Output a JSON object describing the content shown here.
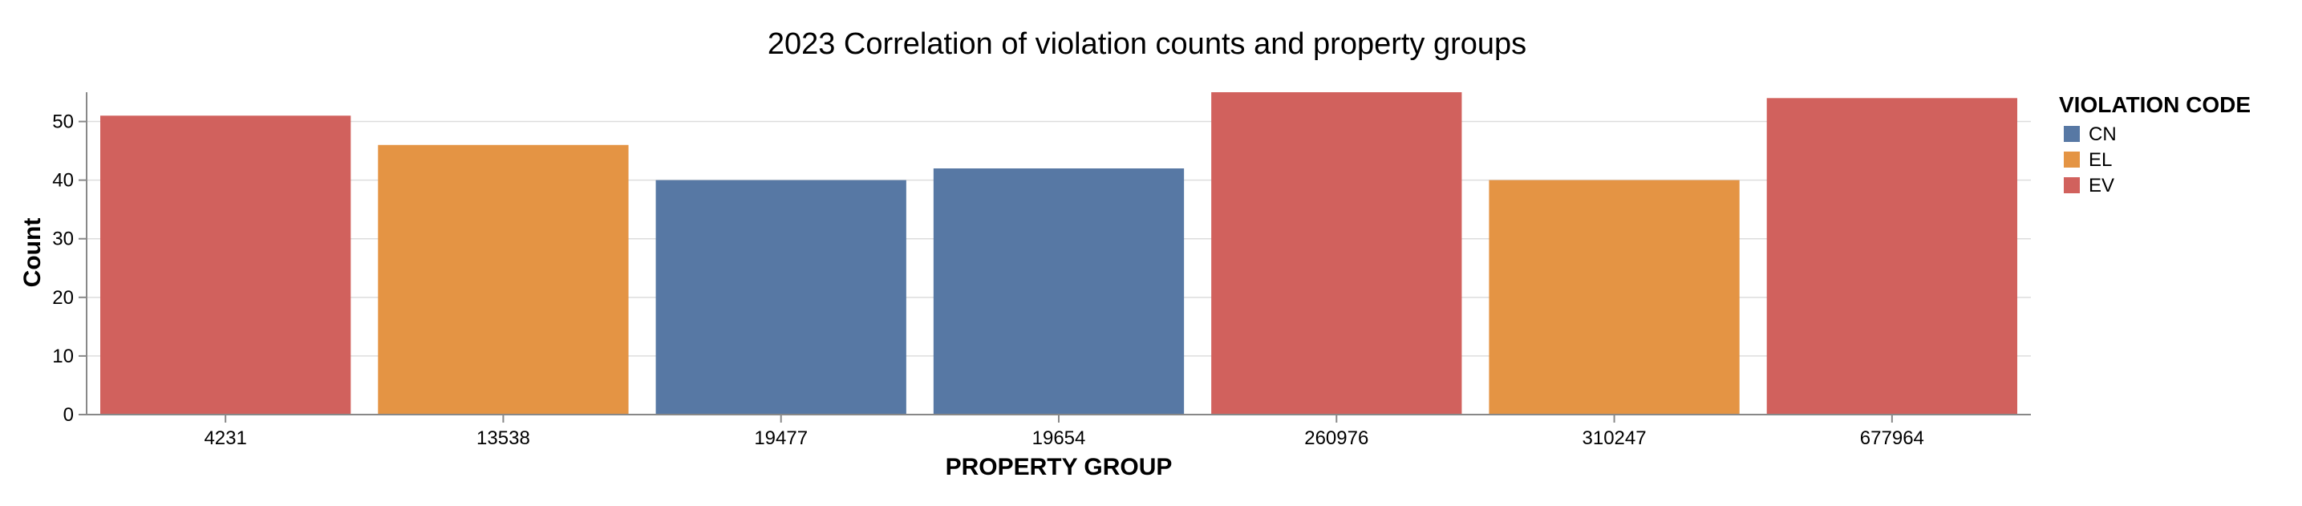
{
  "chart_data": {
    "type": "bar",
    "title": "2023 Correlation of violation counts and property groups",
    "xlabel": "PROPERTY GROUP",
    "ylabel": "Count",
    "ylim": [
      0,
      55
    ],
    "yticks": [
      0,
      10,
      20,
      30,
      40,
      50
    ],
    "grid": true,
    "legend": {
      "title": "VIOLATION CODE",
      "placement": "right",
      "entries": [
        {
          "label": "CN",
          "color": "#5778a4"
        },
        {
          "label": "EL",
          "color": "#e49444"
        },
        {
          "label": "EV",
          "color": "#d1615d"
        }
      ]
    },
    "categories": [
      "4231",
      "13538",
      "19477",
      "19654",
      "260976",
      "310247",
      "677964"
    ],
    "values": [
      51,
      46,
      40,
      42,
      55,
      40,
      54
    ],
    "color_codes": [
      "EV",
      "EL",
      "CN",
      "CN",
      "EV",
      "EL",
      "EV"
    ]
  }
}
